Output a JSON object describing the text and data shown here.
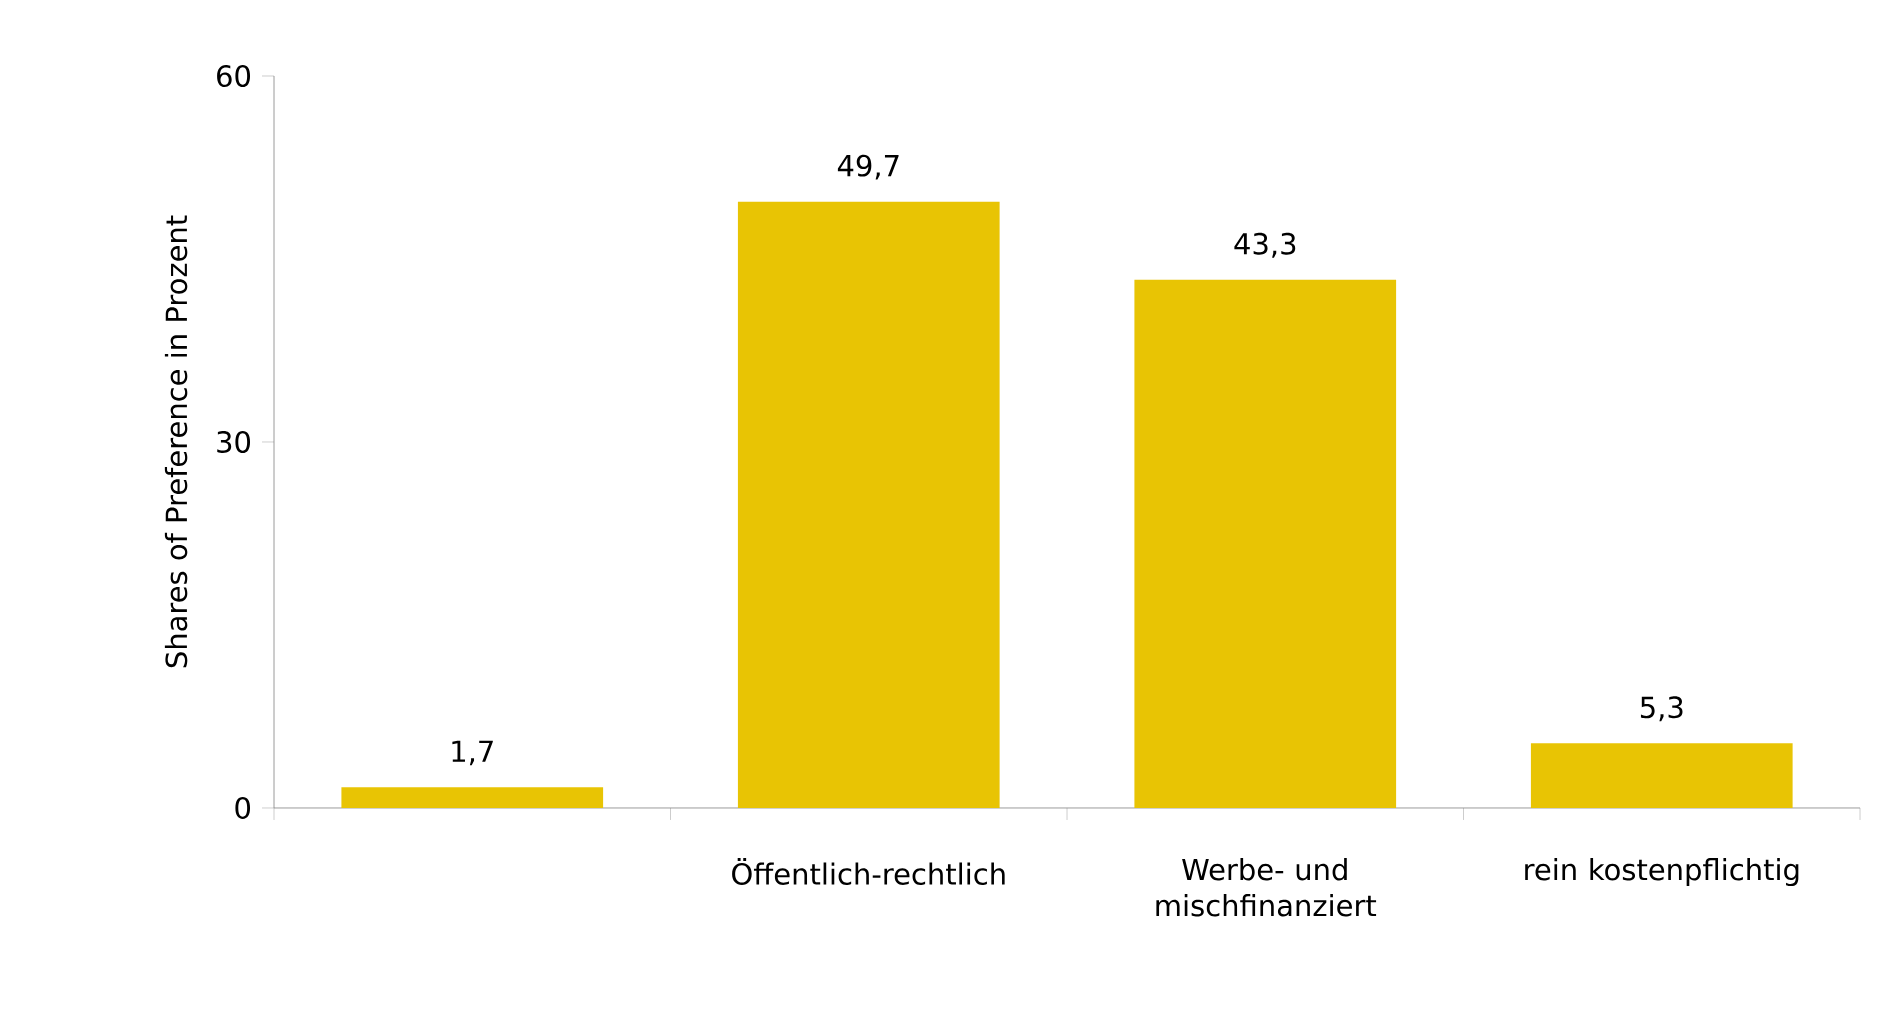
{
  "chart_data": {
    "type": "bar",
    "ylabel": "Shares of Preference in Prozent",
    "categories": [
      null,
      "Öffentlich-rechtlich",
      "Werbe- und mischfinanziert",
      "rein kostenpflichtig"
    ],
    "values": [
      1.7,
      49.7,
      43.3,
      5.3
    ],
    "value_labels": [
      "1,7",
      "49,7",
      "43,3",
      "5,3"
    ],
    "color": "#e8c404",
    "ylim": [
      0,
      60
    ],
    "yticks": [
      0,
      30,
      60
    ]
  }
}
